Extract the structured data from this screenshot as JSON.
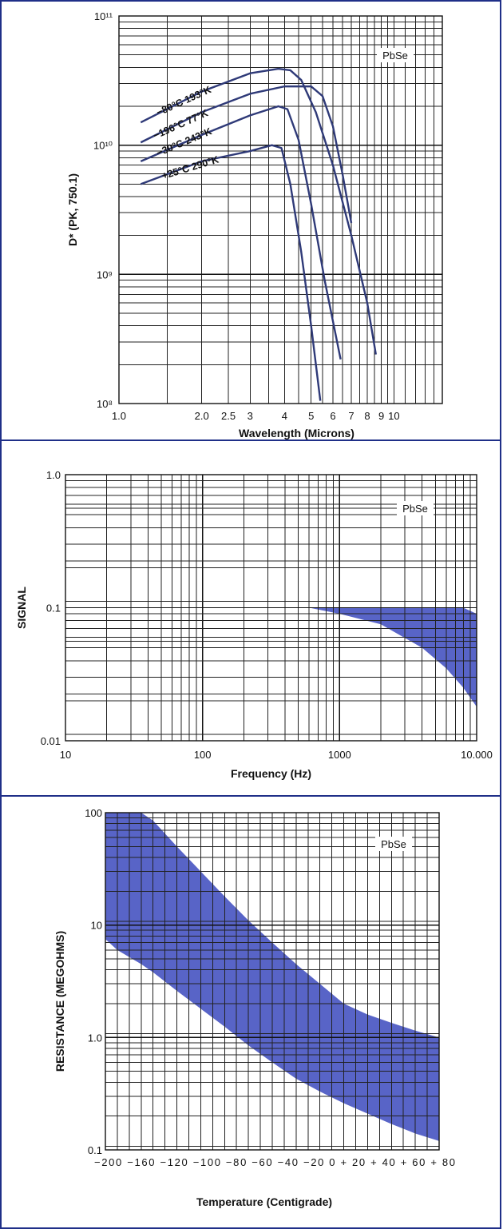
{
  "chart_data": [
    {
      "type": "line",
      "title": "",
      "annotation": "PbSe",
      "xlabel": "Wavelength (Microns)",
      "ylabel": "D* (PK, 750.1)",
      "xscale": "log",
      "yscale": "log",
      "xlim": [
        1.0,
        15.0
      ],
      "ylim": [
        100000000.0,
        100000000000.0
      ],
      "xticks": [
        1.0,
        2.0,
        2.5,
        3,
        4,
        5,
        6,
        7,
        8,
        9,
        10
      ],
      "xtick_labels": [
        "1.0",
        "2.0",
        "2.5",
        "3",
        "4",
        "5",
        "6",
        "7",
        "8",
        "9",
        "10"
      ],
      "yticks": [
        100000000.0,
        1000000000.0,
        10000000000.0,
        100000000000.0
      ],
      "ytick_labels": [
        "10⁸",
        "10⁹",
        "10¹⁰",
        "10¹¹"
      ],
      "grid": true,
      "series": [
        {
          "name": "−80°C 193°K",
          "x": [
            1.2,
            2.0,
            3.0,
            3.8,
            4.2,
            4.6,
            5.2,
            6.0,
            7.0,
            8.0,
            8.6
          ],
          "y": [
            15000000000.0,
            26000000000.0,
            36000000000.0,
            39000000000.0,
            38000000000.0,
            32000000000.0,
            18000000000.0,
            7000000000.0,
            2000000000.0,
            600000000.0,
            240000000.0
          ]
        },
        {
          "name": "−196°C 77°K",
          "x": [
            1.2,
            2.0,
            3.0,
            4.0,
            5.0,
            5.5,
            6.0,
            6.5,
            7.0
          ],
          "y": [
            10500000000.0,
            18000000000.0,
            25000000000.0,
            28500000000.0,
            28500000000.0,
            24000000000.0,
            14000000000.0,
            6000000000.0,
            2500000000.0
          ]
        },
        {
          "name": "−30°C 243°K",
          "x": [
            1.2,
            2.0,
            3.0,
            3.8,
            4.1,
            4.5,
            5.0,
            5.6,
            6.4
          ],
          "y": [
            7500000000.0,
            12000000000.0,
            17000000000.0,
            20000000000.0,
            19000000000.0,
            11000000000.0,
            3500000000.0,
            900000000.0,
            220000000.0
          ]
        },
        {
          "name": "+25°C 290°K",
          "x": [
            1.2,
            2.0,
            3.0,
            3.6,
            3.9,
            4.2,
            4.6,
            5.0,
            5.4
          ],
          "y": [
            5000000000.0,
            7500000000.0,
            9000000000.0,
            10000000000.0,
            9500000000.0,
            5000000000.0,
            1500000000.0,
            400000000.0,
            105000000.0
          ]
        }
      ]
    },
    {
      "type": "area",
      "title": "",
      "annotation": "PbSe",
      "xlabel": "Frequency (Hz)",
      "ylabel": "SIGNAL",
      "xscale": "log",
      "yscale": "log",
      "xlim": [
        10,
        10000
      ],
      "ylim": [
        0.01,
        1.0
      ],
      "xticks": [
        10,
        100,
        1000,
        10000
      ],
      "xtick_labels": [
        "10",
        "100",
        "1000",
        "10.000"
      ],
      "yticks": [
        0.01,
        0.1,
        1.0
      ],
      "ytick_labels": [
        "0.01",
        "0.1",
        "1.0"
      ],
      "grid": true,
      "band": {
        "x": [
          600,
          1000,
          2000,
          4000,
          6000,
          8000,
          10000
        ],
        "upper": [
          0.1,
          0.1,
          0.1,
          0.1,
          0.1,
          0.1,
          0.09
        ],
        "lower": [
          0.1,
          0.09,
          0.075,
          0.05,
          0.035,
          0.025,
          0.018
        ]
      }
    },
    {
      "type": "area",
      "title": "",
      "annotation": "PbSe",
      "xlabel": "Temperature (Centigrade)",
      "ylabel": "RESISTANCE (MEGOHMS)",
      "xscale": "linear",
      "yscale": "log",
      "xlim": [
        -200,
        80
      ],
      "ylim": [
        0.1,
        100
      ],
      "xticks": [
        -200,
        -160,
        -120,
        -100,
        -80,
        -60,
        -40,
        -20,
        0,
        20,
        40,
        60,
        80
      ],
      "xtick_label": "−200    −160   −120 −100 −80 −60 −40 −20  0 + 20 + 40 + 60 + 80",
      "yticks": [
        0.1,
        1.0,
        10,
        100
      ],
      "ytick_labels": [
        "0.1",
        "1.0",
        "10",
        "100"
      ],
      "grid": true,
      "band": {
        "x": [
          -200,
          -190,
          -170,
          -160,
          -140,
          -120,
          -100,
          -80,
          -60,
          -40,
          -20,
          0,
          20,
          40,
          60,
          80
        ],
        "upper": [
          100,
          100,
          100,
          85,
          50,
          30,
          18,
          11,
          7,
          4.5,
          3,
          2,
          1.6,
          1.35,
          1.15,
          1.0
        ],
        "lower": [
          7.5,
          6,
          4.5,
          3.8,
          2.6,
          1.8,
          1.25,
          0.85,
          0.6,
          0.43,
          0.33,
          0.26,
          0.21,
          0.17,
          0.14,
          0.12
        ]
      }
    }
  ],
  "colors": {
    "band": "#4f5cc4",
    "curve": "#2f3a78",
    "frame": "#1f2f88"
  }
}
